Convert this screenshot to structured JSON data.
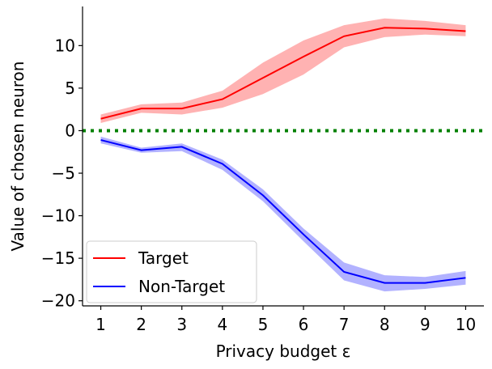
{
  "chart_data": {
    "type": "line",
    "xlabel": "Privacy budget ε",
    "ylabel": "Value of chosen neuron",
    "x": [
      1,
      2,
      3,
      4,
      5,
      6,
      7,
      8,
      9,
      10
    ],
    "xlim": [
      0.55,
      10.45
    ],
    "ylim": [
      -20.6,
      14.6
    ],
    "xticks": [
      1,
      2,
      3,
      4,
      5,
      6,
      7,
      8,
      9,
      10
    ],
    "yticks": [
      -20,
      -15,
      -10,
      -5,
      0,
      5,
      10
    ],
    "ytick_labels": [
      "−20",
      "−15",
      "−10",
      "−5",
      "0",
      "5",
      "10"
    ],
    "grid": false,
    "legend_position": "lower-left",
    "reference_line": {
      "y": 0,
      "style": "dotted",
      "color": "#008000"
    },
    "series": [
      {
        "name": "Target",
        "color": "#ff0000",
        "band_color": "#ff0000",
        "values": [
          1.4,
          2.6,
          2.6,
          3.7,
          6.2,
          8.7,
          11.1,
          12.1,
          12.0,
          11.7
        ],
        "lower": [
          0.9,
          2.1,
          1.9,
          2.7,
          4.3,
          6.6,
          9.8,
          11.0,
          11.3,
          11.1
        ],
        "upper": [
          1.9,
          3.1,
          3.3,
          4.7,
          8.0,
          10.6,
          12.4,
          13.2,
          12.9,
          12.4
        ]
      },
      {
        "name": "Non-Target",
        "color": "#0000ff",
        "band_color": "#0000ff",
        "values": [
          -1.1,
          -2.3,
          -1.9,
          -3.9,
          -7.6,
          -12.2,
          -16.6,
          -17.9,
          -17.9,
          -17.3
        ],
        "lower": [
          -1.5,
          -2.6,
          -2.4,
          -4.6,
          -8.3,
          -13.0,
          -17.6,
          -18.9,
          -18.6,
          -18.1
        ],
        "upper": [
          -0.7,
          -2.0,
          -1.5,
          -3.4,
          -6.9,
          -11.5,
          -15.5,
          -17.0,
          -17.2,
          -16.5
        ]
      }
    ]
  }
}
